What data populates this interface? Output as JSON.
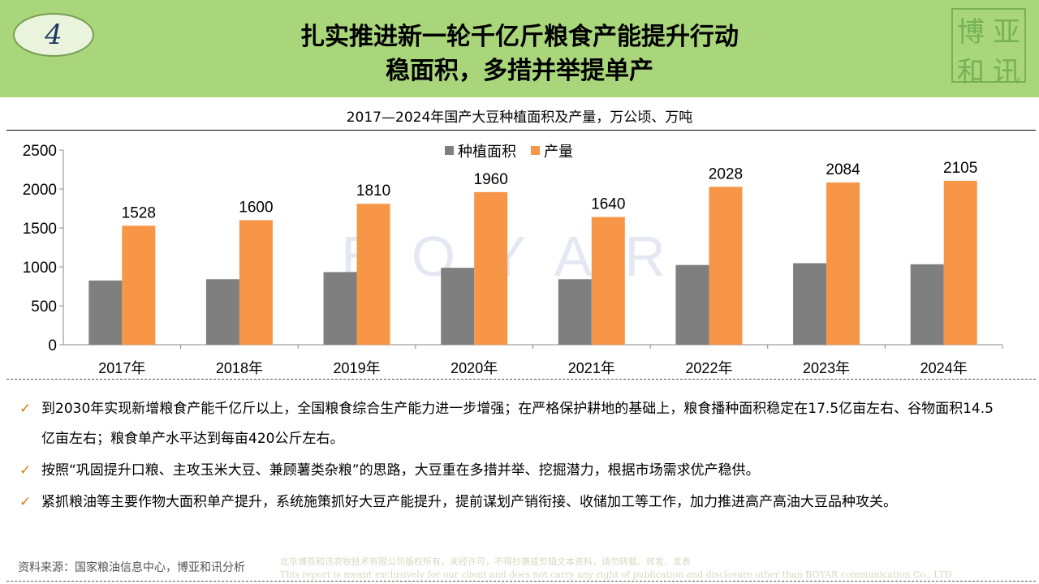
{
  "header": {
    "badge": "4",
    "title_line1": "扎实推进新一轮千亿斤粮食产能提升行动",
    "title_line2": "稳面积，多措并举提单产",
    "logo_chars": [
      "和",
      "博",
      "讯",
      "亚"
    ]
  },
  "watermark": "BOYAR",
  "chart_data": {
    "type": "bar",
    "title": "2017—2024年国产大豆种植面积及产量，万公顷、万吨",
    "categories": [
      "2017年",
      "2018年",
      "2019年",
      "2020年",
      "2021年",
      "2022年",
      "2023年",
      "2024年"
    ],
    "series": [
      {
        "name": "种植面积",
        "color": "#7f7f7f",
        "values": [
          825,
          841,
          933,
          988,
          841,
          1024,
          1047,
          1033
        ]
      },
      {
        "name": "产量",
        "color": "#f79646",
        "values": [
          1528,
          1600,
          1810,
          1960,
          1640,
          2028,
          2084,
          2105
        ],
        "labels": [
          "1528",
          "1600",
          "1810",
          "1960",
          "1640",
          "2028",
          "2084",
          "2105"
        ]
      }
    ],
    "ylim": [
      0,
      2500
    ],
    "yticks": [
      "0",
      "500",
      "1000",
      "1500",
      "2000",
      "2500"
    ],
    "legend": "top-center",
    "grid": false
  },
  "bullets": [
    "到2030年实现新增粮食产能千亿斤以上，全国粮食综合生产能力进一步增强；在严格保护耕地的基础上，粮食播种面积稳定在17.5亿亩左右、谷物面积14.5亿亩左右；粮食单产水平达到每亩420公斤左右。",
    "按照“巩固提升口粮、主攻玉米大豆、兼顾薯类杂粮”的思路，大豆重在多措并举、挖掘潜力，根据市场需求优产稳供。",
    "紧抓粮油等主要作物大面积单产提升，系统施策抓好大豆产能提升，提前谋划产销衔接、收储加工等工作，加力推进高产高油大豆品种攻关。"
  ],
  "bullet_mark": "✓",
  "footer": {
    "source": "资料来源：国家粮油信息中心，博亚和讯分析",
    "copyright_cn": "北京博亚和讯农牧技术有限公司版权所有，未经许可，不得抄袭或剪辑文本资料，请勿转载、转发、发表",
    "copyright_en": "This report is meant exclusively for our client and does not carry any right of publication and disclosure other than BOYAR communication Co., LTD"
  }
}
